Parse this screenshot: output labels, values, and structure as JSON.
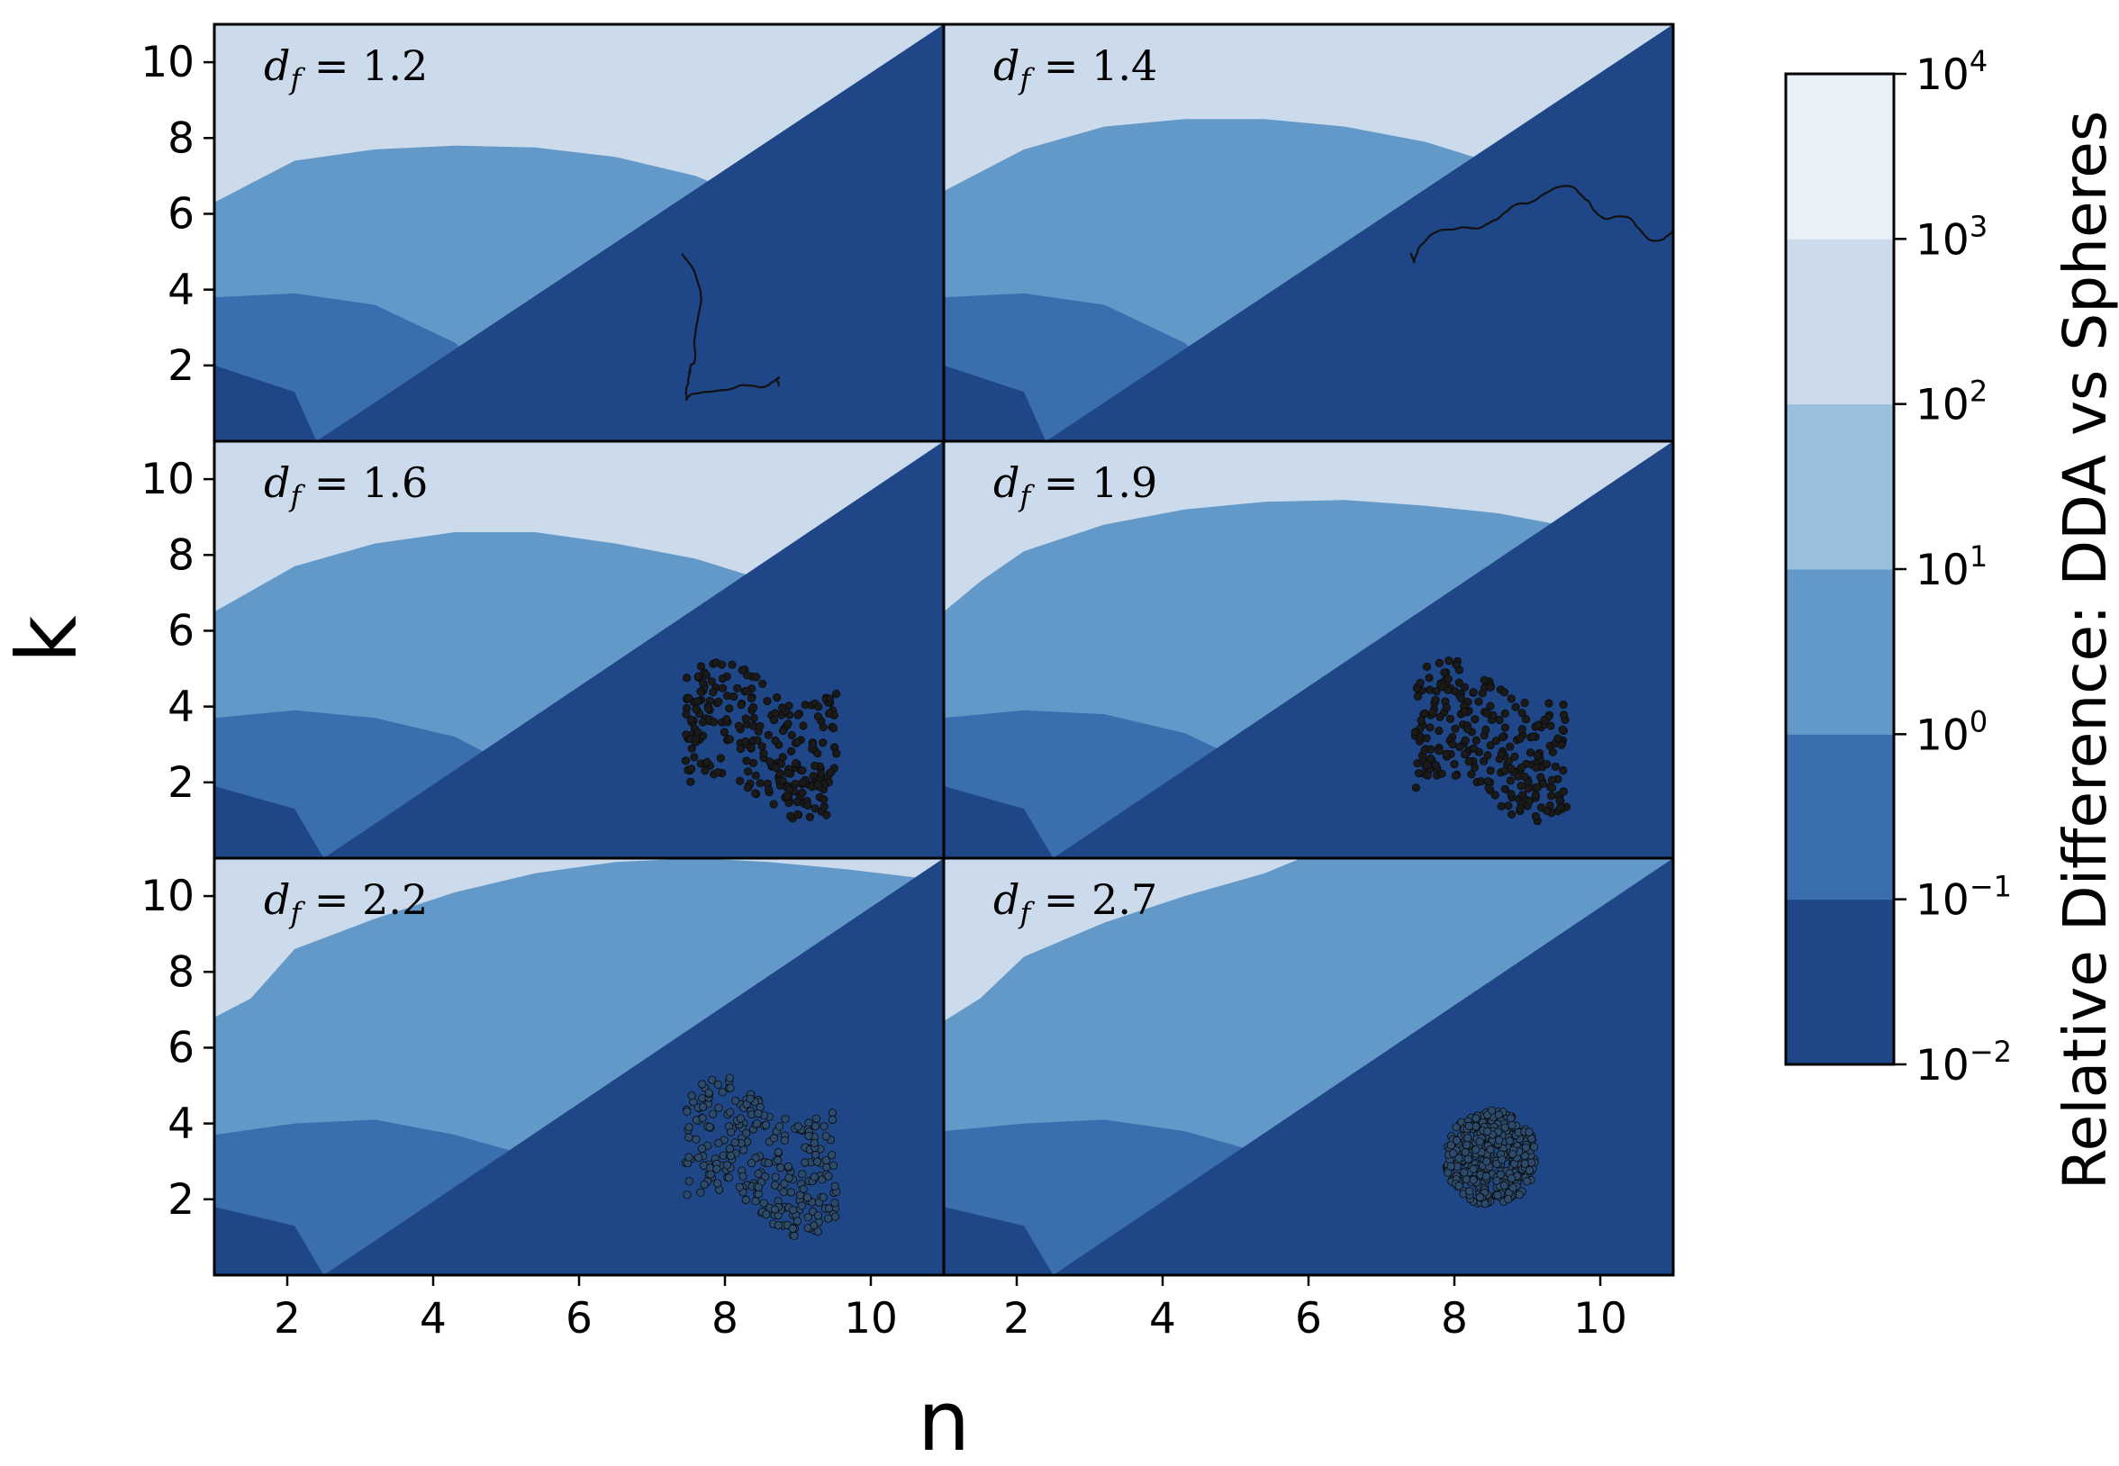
{
  "chart_data": {
    "type": "heatmap",
    "subtype": "filled-contour small multiples",
    "xlabel": "n",
    "ylabel": "k",
    "xlim": [
      1,
      11
    ],
    "ylim": [
      0,
      11
    ],
    "xticks": [
      2,
      4,
      6,
      8,
      10
    ],
    "yticks": [
      2,
      4,
      6,
      8,
      10
    ],
    "grid": false,
    "panels": [
      {
        "label": "d_f = 1.2",
        "df": "1.2",
        "contours": [
          {
            "level_index": 1,
            "points": [
              [
                1,
                2.0
              ],
              [
                2.1,
                1.3
              ],
              [
                2.4,
                0
              ]
            ]
          },
          {
            "level_index": 2,
            "points": [
              [
                1,
                3.8
              ],
              [
                2.1,
                3.9
              ],
              [
                3.2,
                3.6
              ],
              [
                4.3,
                2.6
              ],
              [
                5.0,
                1.3
              ],
              [
                5.2,
                0
              ]
            ]
          },
          {
            "level_index": 3,
            "points": [
              [
                1,
                6.3
              ],
              [
                2.1,
                7.4
              ],
              [
                3.2,
                7.7
              ],
              [
                4.3,
                7.8
              ],
              [
                5.4,
                7.75
              ],
              [
                6.5,
                7.5
              ],
              [
                7.6,
                7.0
              ],
              [
                8.6,
                6.2
              ],
              [
                10.0,
                5.1
              ],
              [
                11,
                3.9
              ]
            ]
          }
        ]
      },
      {
        "label": "d_f = 1.4",
        "df": "1.4",
        "contours": [
          {
            "level_index": 1,
            "points": [
              [
                1,
                2.0
              ],
              [
                2.1,
                1.3
              ],
              [
                2.4,
                0
              ]
            ]
          },
          {
            "level_index": 2,
            "points": [
              [
                1,
                3.8
              ],
              [
                2.1,
                3.9
              ],
              [
                3.2,
                3.6
              ],
              [
                4.3,
                2.6
              ],
              [
                5.0,
                1.3
              ],
              [
                5.5,
                0
              ]
            ]
          },
          {
            "level_index": 3,
            "points": [
              [
                1,
                6.6
              ],
              [
                2.1,
                7.7
              ],
              [
                3.2,
                8.3
              ],
              [
                4.3,
                8.5
              ],
              [
                5.4,
                8.5
              ],
              [
                6.5,
                8.3
              ],
              [
                7.6,
                7.9
              ],
              [
                8.6,
                7.3
              ],
              [
                9.7,
                6.5
              ],
              [
                11,
                5.3
              ]
            ]
          }
        ]
      },
      {
        "label": "d_f = 1.6",
        "df": "1.6",
        "contours": [
          {
            "level_index": 1,
            "points": [
              [
                1,
                1.9
              ],
              [
                2.1,
                1.3
              ],
              [
                2.5,
                0
              ]
            ]
          },
          {
            "level_index": 2,
            "points": [
              [
                1,
                3.7
              ],
              [
                2.1,
                3.9
              ],
              [
                3.2,
                3.7
              ],
              [
                4.3,
                3.2
              ],
              [
                5.1,
                2.4
              ],
              [
                5.5,
                1.3
              ],
              [
                5.6,
                0
              ]
            ]
          },
          {
            "level_index": 3,
            "points": [
              [
                1,
                6.5
              ],
              [
                2.1,
                7.7
              ],
              [
                3.2,
                8.3
              ],
              [
                4.3,
                8.6
              ],
              [
                5.4,
                8.6
              ],
              [
                6.5,
                8.3
              ],
              [
                7.6,
                7.9
              ],
              [
                8.6,
                7.3
              ],
              [
                9.7,
                6.5
              ],
              [
                11,
                5.5
              ]
            ]
          }
        ]
      },
      {
        "label": "d_f = 1.9",
        "df": "1.9",
        "contours": [
          {
            "level_index": 1,
            "points": [
              [
                1,
                1.9
              ],
              [
                2.1,
                1.3
              ],
              [
                2.5,
                0
              ]
            ]
          },
          {
            "level_index": 2,
            "points": [
              [
                1,
                3.7
              ],
              [
                2.1,
                3.9
              ],
              [
                3.2,
                3.8
              ],
              [
                4.3,
                3.3
              ],
              [
                5.3,
                2.4
              ],
              [
                5.9,
                1.3
              ],
              [
                6.0,
                0
              ]
            ]
          },
          {
            "level_index": 3,
            "points": [
              [
                1,
                6.5
              ],
              [
                1.5,
                7.3
              ],
              [
                2.1,
                8.1
              ],
              [
                3.2,
                8.8
              ],
              [
                4.3,
                9.2
              ],
              [
                5.4,
                9.4
              ],
              [
                6.5,
                9.45
              ],
              [
                7.6,
                9.3
              ],
              [
                8.6,
                9.1
              ],
              [
                9.7,
                8.7
              ],
              [
                11,
                8.0
              ]
            ]
          }
        ]
      },
      {
        "label": "d_f = 2.2",
        "df": "2.2",
        "contours": [
          {
            "level_index": 1,
            "points": [
              [
                1,
                1.8
              ],
              [
                2.1,
                1.3
              ],
              [
                2.5,
                0
              ]
            ]
          },
          {
            "level_index": 2,
            "points": [
              [
                1,
                3.7
              ],
              [
                2.1,
                4.0
              ],
              [
                3.2,
                4.1
              ],
              [
                4.3,
                3.7
              ],
              [
                5.4,
                3.1
              ],
              [
                6.2,
                2.3
              ],
              [
                6.5,
                1.3
              ],
              [
                6.6,
                0
              ]
            ]
          },
          {
            "level_index": 3,
            "points": [
              [
                1,
                6.8
              ],
              [
                1.5,
                7.3
              ],
              [
                2.1,
                8.6
              ],
              [
                3.2,
                9.4
              ],
              [
                4.3,
                10.1
              ],
              [
                5.4,
                10.6
              ],
              [
                6.5,
                10.9
              ],
              [
                7.6,
                11.0
              ],
              [
                8.6,
                10.9
              ],
              [
                9.7,
                10.7
              ],
              [
                11,
                10.4
              ]
            ]
          }
        ]
      },
      {
        "label": "d_f = 2.7",
        "df": "2.7",
        "contours": [
          {
            "level_index": 1,
            "points": [
              [
                1,
                1.8
              ],
              [
                2.1,
                1.3
              ],
              [
                2.5,
                0
              ]
            ]
          },
          {
            "level_index": 2,
            "points": [
              [
                1,
                3.8
              ],
              [
                2.1,
                4.0
              ],
              [
                3.2,
                4.1
              ],
              [
                4.3,
                3.8
              ],
              [
                5.4,
                3.2
              ],
              [
                6.4,
                2.4
              ],
              [
                6.9,
                1.3
              ],
              [
                7.0,
                0
              ]
            ]
          },
          {
            "level_index": 3,
            "points": [
              [
                1,
                6.7
              ],
              [
                1.5,
                7.3
              ],
              [
                2.1,
                8.4
              ],
              [
                3.2,
                9.3
              ],
              [
                4.3,
                10.0
              ],
              [
                5.4,
                10.6
              ],
              [
                5.9,
                11.0
              ]
            ]
          }
        ]
      }
    ],
    "colorbar": {
      "title": "Relative Difference: DDA vs Spheres",
      "scale": "log",
      "levels": [
        0.01,
        0.1,
        1,
        10,
        100,
        1000,
        10000
      ],
      "tick_labels": [
        {
          "base": "10",
          "exp": "−2"
        },
        {
          "base": "10",
          "exp": "−1"
        },
        {
          "base": "10",
          "exp": "0"
        },
        {
          "base": "10",
          "exp": "1"
        },
        {
          "base": "10",
          "exp": "2"
        },
        {
          "base": "10",
          "exp": "3"
        },
        {
          "base": "10",
          "exp": "4"
        }
      ],
      "colors": [
        "#1f4788",
        "#3a6eaf",
        "#6399c8",
        "#98bfdb",
        "#cbdbec",
        "#e8f0f8"
      ]
    },
    "insets": [
      {
        "panel": 0,
        "kind": "line-chain"
      },
      {
        "panel": 1,
        "kind": "line-chain"
      },
      {
        "panel": 2,
        "kind": "cluster"
      },
      {
        "panel": 3,
        "kind": "cluster"
      },
      {
        "panel": 4,
        "kind": "cluster"
      },
      {
        "panel": 5,
        "kind": "compact-cluster"
      }
    ]
  }
}
